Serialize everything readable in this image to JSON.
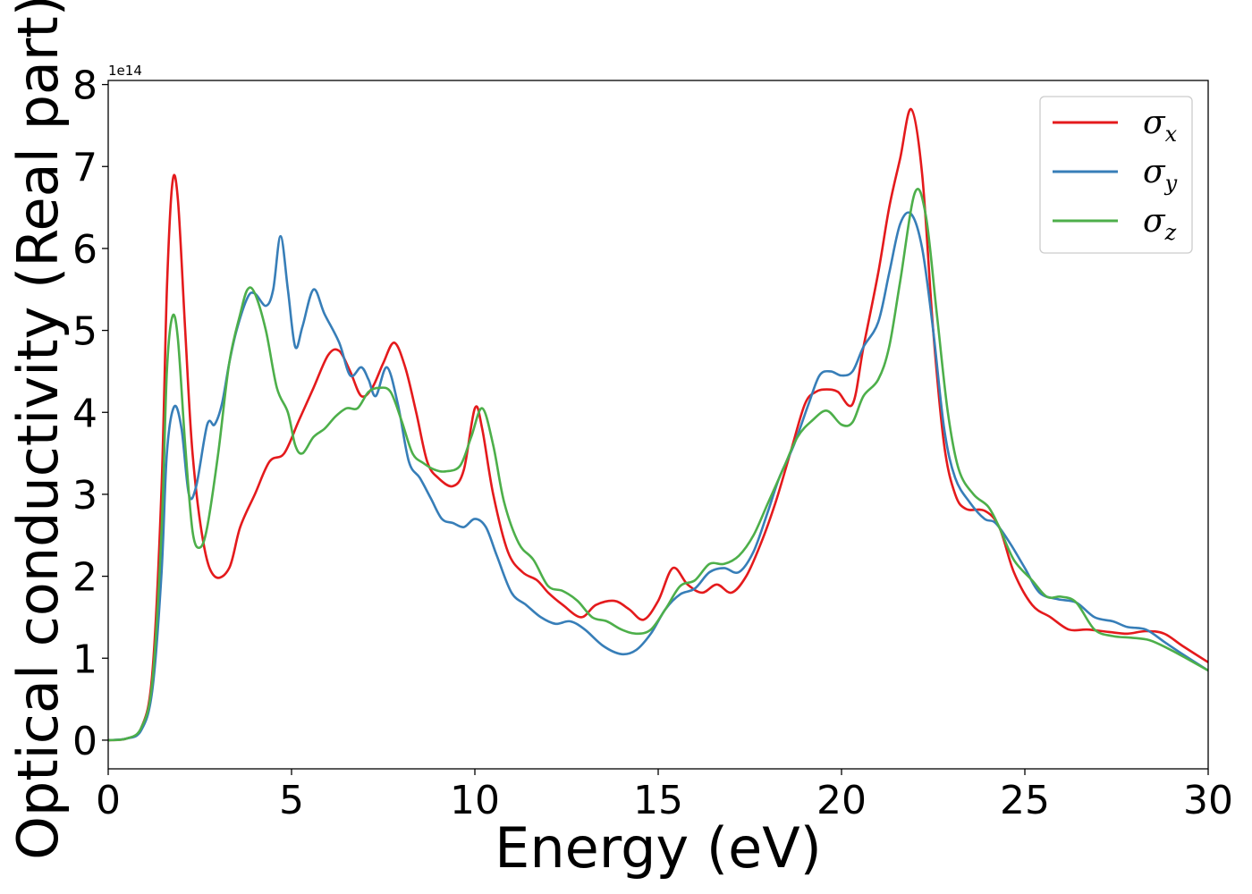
{
  "chart_data": {
    "type": "line",
    "title": "",
    "xlabel": "Energy (eV)",
    "ylabel": "Optical conductivity (Real part)",
    "y_offset_label": "1e14",
    "xlim": [
      0,
      30
    ],
    "ylim": [
      -0.35,
      8.05
    ],
    "xticks": [
      0,
      5,
      10,
      15,
      20,
      25,
      30
    ],
    "yticks": [
      0,
      1,
      2,
      3,
      4,
      5,
      6,
      7,
      8
    ],
    "grid": false,
    "legend": "top-right",
    "series": [
      {
        "name": "σx",
        "name_base": "σ",
        "name_sub": "x",
        "color": "#e41a1c",
        "points": [
          [
            0,
            0
          ],
          [
            0.5,
            0.02
          ],
          [
            0.9,
            0.15
          ],
          [
            1.2,
            0.8
          ],
          [
            1.45,
            3.0
          ],
          [
            1.6,
            5.5
          ],
          [
            1.75,
            6.8
          ],
          [
            1.9,
            6.6
          ],
          [
            2.1,
            5.0
          ],
          [
            2.3,
            3.5
          ],
          [
            2.6,
            2.4
          ],
          [
            2.9,
            2.0
          ],
          [
            3.3,
            2.1
          ],
          [
            3.6,
            2.6
          ],
          [
            4.0,
            3.0
          ],
          [
            4.4,
            3.4
          ],
          [
            4.8,
            3.5
          ],
          [
            5.2,
            3.9
          ],
          [
            5.6,
            4.3
          ],
          [
            6.0,
            4.7
          ],
          [
            6.3,
            4.75
          ],
          [
            6.6,
            4.5
          ],
          [
            6.9,
            4.2
          ],
          [
            7.2,
            4.3
          ],
          [
            7.5,
            4.6
          ],
          [
            7.8,
            4.85
          ],
          [
            8.1,
            4.55
          ],
          [
            8.4,
            4.0
          ],
          [
            8.7,
            3.4
          ],
          [
            9.0,
            3.2
          ],
          [
            9.4,
            3.1
          ],
          [
            9.7,
            3.3
          ],
          [
            10.0,
            4.05
          ],
          [
            10.2,
            3.8
          ],
          [
            10.5,
            3.0
          ],
          [
            10.9,
            2.3
          ],
          [
            11.3,
            2.05
          ],
          [
            11.7,
            1.95
          ],
          [
            12.0,
            1.8
          ],
          [
            12.4,
            1.65
          ],
          [
            12.9,
            1.5
          ],
          [
            13.3,
            1.65
          ],
          [
            13.8,
            1.7
          ],
          [
            14.2,
            1.6
          ],
          [
            14.6,
            1.47
          ],
          [
            15.0,
            1.7
          ],
          [
            15.4,
            2.1
          ],
          [
            15.8,
            1.9
          ],
          [
            16.2,
            1.8
          ],
          [
            16.6,
            1.9
          ],
          [
            17.0,
            1.8
          ],
          [
            17.4,
            2.0
          ],
          [
            17.8,
            2.4
          ],
          [
            18.2,
            2.9
          ],
          [
            18.6,
            3.5
          ],
          [
            19.0,
            4.1
          ],
          [
            19.3,
            4.25
          ],
          [
            19.6,
            4.28
          ],
          [
            19.9,
            4.25
          ],
          [
            20.3,
            4.1
          ],
          [
            20.6,
            4.8
          ],
          [
            21.0,
            5.7
          ],
          [
            21.3,
            6.5
          ],
          [
            21.6,
            7.1
          ],
          [
            21.9,
            7.7
          ],
          [
            22.2,
            6.9
          ],
          [
            22.5,
            5.0
          ],
          [
            22.8,
            3.6
          ],
          [
            23.1,
            3.0
          ],
          [
            23.4,
            2.82
          ],
          [
            23.9,
            2.8
          ],
          [
            24.3,
            2.6
          ],
          [
            24.7,
            2.05
          ],
          [
            25.2,
            1.65
          ],
          [
            25.7,
            1.5
          ],
          [
            26.2,
            1.35
          ],
          [
            26.7,
            1.35
          ],
          [
            27.3,
            1.32
          ],
          [
            27.8,
            1.3
          ],
          [
            28.3,
            1.33
          ],
          [
            28.8,
            1.3
          ],
          [
            29.3,
            1.15
          ],
          [
            30.0,
            0.95
          ]
        ]
      },
      {
        "name": "σy",
        "name_base": "σ",
        "name_sub": "y",
        "color": "#377eb8",
        "points": [
          [
            0,
            0
          ],
          [
            0.5,
            0.02
          ],
          [
            0.9,
            0.12
          ],
          [
            1.2,
            0.6
          ],
          [
            1.45,
            2.0
          ],
          [
            1.6,
            3.5
          ],
          [
            1.8,
            4.07
          ],
          [
            2.0,
            3.8
          ],
          [
            2.2,
            3.0
          ],
          [
            2.4,
            3.1
          ],
          [
            2.7,
            3.85
          ],
          [
            2.9,
            3.85
          ],
          [
            3.1,
            4.1
          ],
          [
            3.3,
            4.6
          ],
          [
            3.5,
            5.0
          ],
          [
            3.8,
            5.4
          ],
          [
            4.0,
            5.45
          ],
          [
            4.3,
            5.3
          ],
          [
            4.5,
            5.5
          ],
          [
            4.7,
            6.15
          ],
          [
            4.9,
            5.5
          ],
          [
            5.1,
            4.8
          ],
          [
            5.3,
            5.05
          ],
          [
            5.6,
            5.5
          ],
          [
            5.9,
            5.2
          ],
          [
            6.3,
            4.85
          ],
          [
            6.6,
            4.45
          ],
          [
            6.9,
            4.55
          ],
          [
            7.1,
            4.4
          ],
          [
            7.3,
            4.2
          ],
          [
            7.6,
            4.55
          ],
          [
            7.9,
            4.1
          ],
          [
            8.2,
            3.4
          ],
          [
            8.5,
            3.2
          ],
          [
            8.8,
            2.95
          ],
          [
            9.1,
            2.7
          ],
          [
            9.4,
            2.65
          ],
          [
            9.7,
            2.6
          ],
          [
            10.0,
            2.7
          ],
          [
            10.3,
            2.6
          ],
          [
            10.6,
            2.25
          ],
          [
            11.0,
            1.8
          ],
          [
            11.4,
            1.65
          ],
          [
            11.8,
            1.5
          ],
          [
            12.2,
            1.42
          ],
          [
            12.6,
            1.45
          ],
          [
            13.0,
            1.35
          ],
          [
            13.5,
            1.15
          ],
          [
            14.0,
            1.05
          ],
          [
            14.4,
            1.1
          ],
          [
            14.8,
            1.3
          ],
          [
            15.2,
            1.6
          ],
          [
            15.6,
            1.78
          ],
          [
            16.0,
            1.85
          ],
          [
            16.4,
            2.05
          ],
          [
            16.8,
            2.1
          ],
          [
            17.2,
            2.05
          ],
          [
            17.6,
            2.3
          ],
          [
            18.0,
            2.8
          ],
          [
            18.3,
            3.2
          ],
          [
            18.7,
            3.6
          ],
          [
            19.1,
            4.1
          ],
          [
            19.4,
            4.45
          ],
          [
            19.7,
            4.5
          ],
          [
            20.0,
            4.45
          ],
          [
            20.3,
            4.5
          ],
          [
            20.6,
            4.8
          ],
          [
            21.0,
            5.1
          ],
          [
            21.3,
            5.7
          ],
          [
            21.6,
            6.3
          ],
          [
            21.9,
            6.42
          ],
          [
            22.2,
            6.0
          ],
          [
            22.5,
            5.0
          ],
          [
            22.8,
            3.8
          ],
          [
            23.1,
            3.2
          ],
          [
            23.5,
            2.9
          ],
          [
            23.9,
            2.7
          ],
          [
            24.2,
            2.65
          ],
          [
            24.6,
            2.4
          ],
          [
            25.0,
            2.1
          ],
          [
            25.4,
            1.8
          ],
          [
            25.9,
            1.72
          ],
          [
            26.4,
            1.68
          ],
          [
            26.9,
            1.5
          ],
          [
            27.4,
            1.45
          ],
          [
            27.8,
            1.38
          ],
          [
            28.3,
            1.35
          ],
          [
            28.8,
            1.2
          ],
          [
            29.3,
            1.05
          ],
          [
            30.0,
            0.85
          ]
        ]
      },
      {
        "name": "σz",
        "name_base": "σ",
        "name_sub": "z",
        "color": "#4daf4a",
        "points": [
          [
            0,
            0
          ],
          [
            0.5,
            0.02
          ],
          [
            0.9,
            0.15
          ],
          [
            1.2,
            0.7
          ],
          [
            1.45,
            2.5
          ],
          [
            1.6,
            4.5
          ],
          [
            1.75,
            5.17
          ],
          [
            1.9,
            4.9
          ],
          [
            2.1,
            3.6
          ],
          [
            2.3,
            2.55
          ],
          [
            2.5,
            2.35
          ],
          [
            2.7,
            2.6
          ],
          [
            3.0,
            3.5
          ],
          [
            3.3,
            4.6
          ],
          [
            3.6,
            5.2
          ],
          [
            3.8,
            5.5
          ],
          [
            4.0,
            5.45
          ],
          [
            4.3,
            5.0
          ],
          [
            4.6,
            4.3
          ],
          [
            4.9,
            4.0
          ],
          [
            5.1,
            3.6
          ],
          [
            5.3,
            3.5
          ],
          [
            5.6,
            3.7
          ],
          [
            5.9,
            3.8
          ],
          [
            6.2,
            3.95
          ],
          [
            6.5,
            4.05
          ],
          [
            6.8,
            4.05
          ],
          [
            7.1,
            4.25
          ],
          [
            7.4,
            4.3
          ],
          [
            7.7,
            4.25
          ],
          [
            8.0,
            3.9
          ],
          [
            8.3,
            3.5
          ],
          [
            8.6,
            3.38
          ],
          [
            8.9,
            3.3
          ],
          [
            9.2,
            3.28
          ],
          [
            9.6,
            3.35
          ],
          [
            9.9,
            3.7
          ],
          [
            10.2,
            4.05
          ],
          [
            10.5,
            3.6
          ],
          [
            10.8,
            2.9
          ],
          [
            11.2,
            2.4
          ],
          [
            11.6,
            2.2
          ],
          [
            12.0,
            1.88
          ],
          [
            12.4,
            1.82
          ],
          [
            12.8,
            1.7
          ],
          [
            13.2,
            1.5
          ],
          [
            13.6,
            1.45
          ],
          [
            14.0,
            1.35
          ],
          [
            14.4,
            1.3
          ],
          [
            14.8,
            1.35
          ],
          [
            15.2,
            1.6
          ],
          [
            15.6,
            1.88
          ],
          [
            16.0,
            1.95
          ],
          [
            16.4,
            2.15
          ],
          [
            16.8,
            2.15
          ],
          [
            17.2,
            2.25
          ],
          [
            17.6,
            2.5
          ],
          [
            18.0,
            2.9
          ],
          [
            18.4,
            3.3
          ],
          [
            18.8,
            3.7
          ],
          [
            19.2,
            3.9
          ],
          [
            19.6,
            4.02
          ],
          [
            20.0,
            3.85
          ],
          [
            20.3,
            3.88
          ],
          [
            20.6,
            4.2
          ],
          [
            21.0,
            4.4
          ],
          [
            21.3,
            4.8
          ],
          [
            21.6,
            5.6
          ],
          [
            22.0,
            6.68
          ],
          [
            22.3,
            6.4
          ],
          [
            22.6,
            5.2
          ],
          [
            22.9,
            4.0
          ],
          [
            23.2,
            3.3
          ],
          [
            23.6,
            3.0
          ],
          [
            24.0,
            2.85
          ],
          [
            24.3,
            2.6
          ],
          [
            24.7,
            2.2
          ],
          [
            25.2,
            1.95
          ],
          [
            25.6,
            1.75
          ],
          [
            26.0,
            1.75
          ],
          [
            26.4,
            1.68
          ],
          [
            26.9,
            1.35
          ],
          [
            27.4,
            1.27
          ],
          [
            27.9,
            1.25
          ],
          [
            28.4,
            1.22
          ],
          [
            28.9,
            1.12
          ],
          [
            29.4,
            1.0
          ],
          [
            30.0,
            0.85
          ]
        ]
      }
    ]
  }
}
